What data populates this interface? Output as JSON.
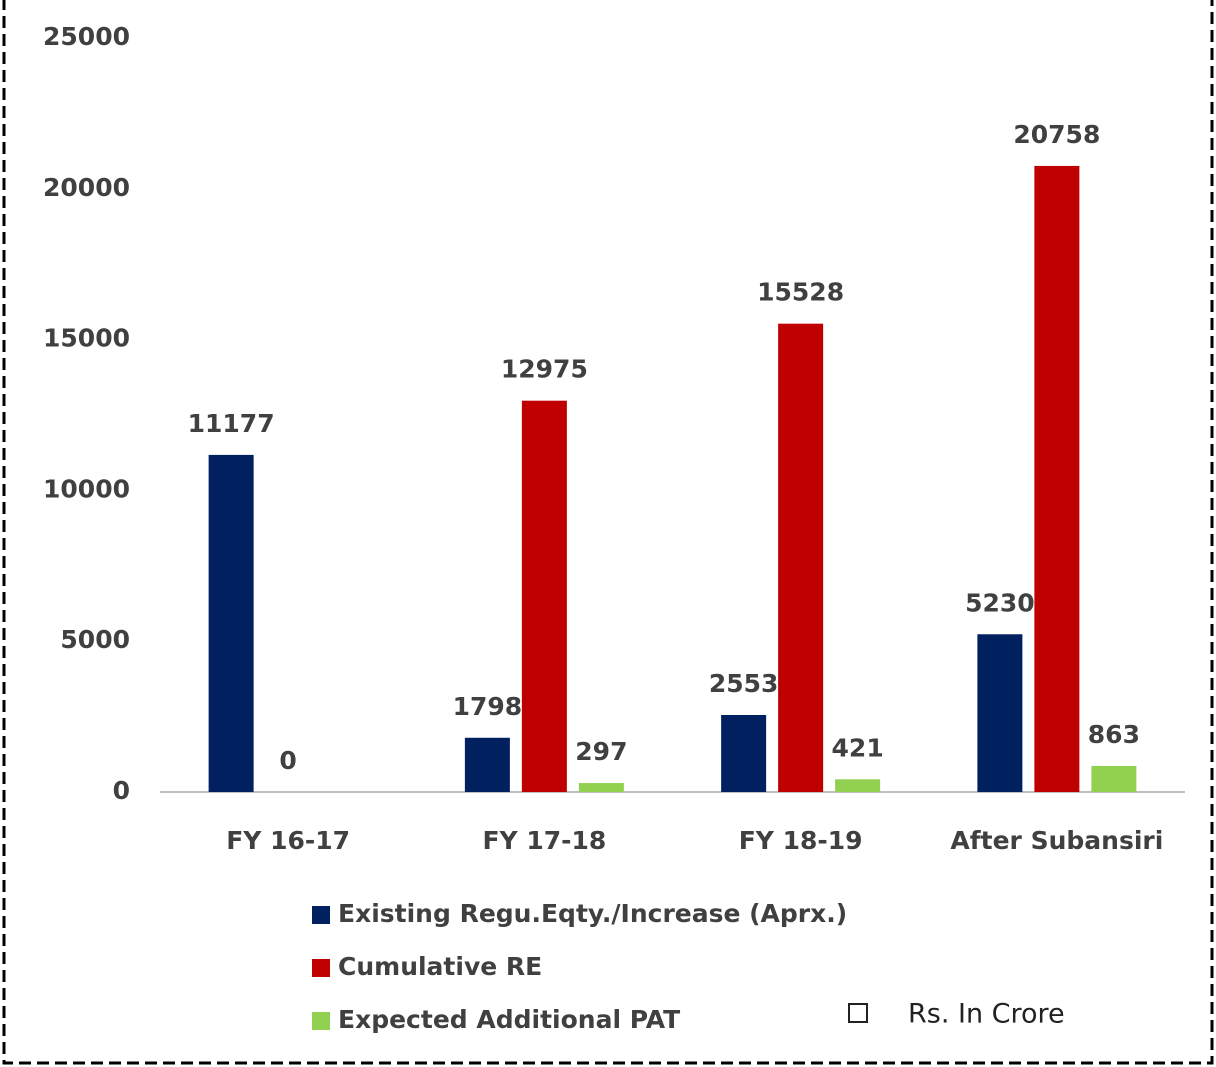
{
  "chart_data": {
    "type": "bar",
    "categories": [
      "FY 16-17",
      "FY 17-18",
      "FY 18-19",
      "After Subansiri"
    ],
    "series": [
      {
        "name": "Existing Regu.Eqty./Increase (Aprx.)",
        "color": "#002060",
        "values": [
          11177,
          1798,
          2553,
          5230
        ]
      },
      {
        "name": "Cumulative RE",
        "color": "#c00000",
        "values": [
          0,
          12975,
          15528,
          20758
        ]
      },
      {
        "name": "Expected Additional PAT",
        "color": "#92d050",
        "values": [
          null,
          297,
          421,
          863
        ]
      }
    ],
    "ylim": [
      0,
      25000
    ],
    "yticks": [
      0,
      5000,
      10000,
      15000,
      20000,
      25000
    ],
    "annotation": "Rs. In Crore",
    "legend": "bottom"
  }
}
